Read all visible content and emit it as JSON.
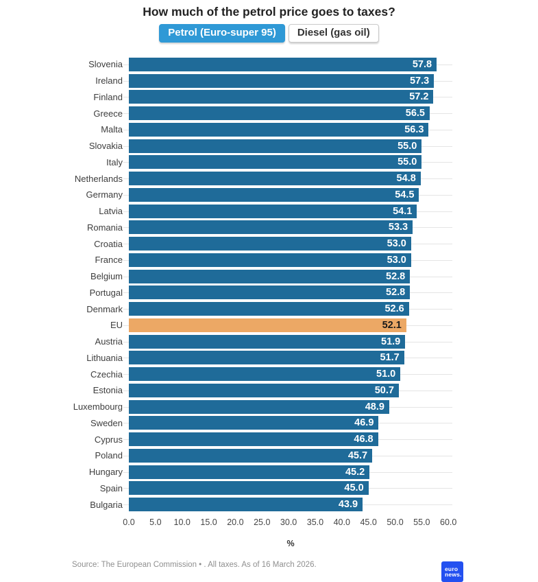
{
  "title": "How much of the petrol price goes to taxes?",
  "tabs": [
    {
      "label": "Petrol (Euro-super 95)",
      "selected": true
    },
    {
      "label": "Diesel (gas oil)",
      "selected": false
    }
  ],
  "chart_data": {
    "type": "bar",
    "orientation": "horizontal",
    "title": "How much of the petrol price goes to taxes?",
    "categories": [
      "Slovenia",
      "Ireland",
      "Finland",
      "Greece",
      "Malta",
      "Slovakia",
      "Italy",
      "Netherlands",
      "Germany",
      "Latvia",
      "Romania",
      "Croatia",
      "France",
      "Belgium",
      "Portugal",
      "Denmark",
      "EU",
      "Austria",
      "Lithuania",
      "Czechia",
      "Estonia",
      "Luxembourg",
      "Sweden",
      "Cyprus",
      "Poland",
      "Hungary",
      "Spain",
      "Bulgaria"
    ],
    "values": [
      57.8,
      57.3,
      57.2,
      56.5,
      56.3,
      55.0,
      55.0,
      54.8,
      54.5,
      54.1,
      53.3,
      53.0,
      53.0,
      52.8,
      52.8,
      52.6,
      52.1,
      51.9,
      51.7,
      51.0,
      50.7,
      48.9,
      46.9,
      46.8,
      45.7,
      45.2,
      45.0,
      43.9
    ],
    "highlight_category": "EU",
    "xlabel": "%",
    "xlim": [
      0,
      60
    ],
    "x_ticks": [
      "0.0",
      "5.0",
      "10.0",
      "15.0",
      "20.0",
      "25.0",
      "30.0",
      "35.0",
      "40.0",
      "45.0",
      "50.0",
      "55.0",
      "60.0"
    ],
    "grid": "row-lines",
    "legend_position": "none",
    "bar_color": "#1f6b99",
    "highlight_color": "#eca865"
  },
  "footer": {
    "source": "Source: The European Commission • . All taxes. As of 16 March 2026.",
    "logo_line1": "euro",
    "logo_line2": "news.",
    "logo_color": "#2350f0"
  }
}
